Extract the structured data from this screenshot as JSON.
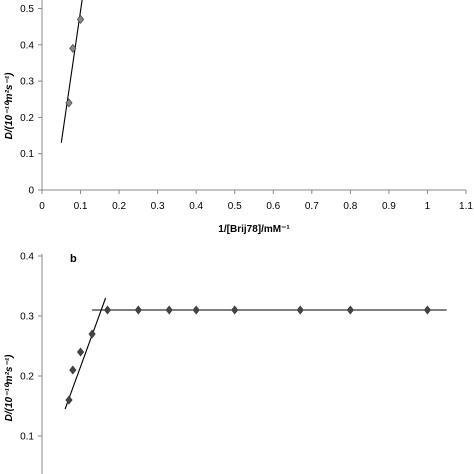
{
  "chart_data": [
    {
      "type": "scatter",
      "panel_label": "",
      "xlabel": "1/[Brij78]/mM⁻¹",
      "ylabel": "D/(10⁻¹⁰m²s⁻¹)",
      "xlim": [
        0,
        1.1
      ],
      "ylim": [
        0,
        0.5
      ],
      "x_ticks": [
        "0",
        "0.1",
        "0.2",
        "0.3",
        "0.4",
        "0.5",
        "0.6",
        "0.7",
        "0.8",
        "0.9",
        "1",
        "1.1"
      ],
      "y_ticks": [
        "0",
        "0.1",
        "0.2",
        "0.3",
        "0.4",
        "0.5"
      ],
      "marker": "diamond",
      "marker_color": "#888888",
      "series": [
        {
          "x": [
            0.07,
            0.08,
            0.1
          ],
          "y": [
            0.24,
            0.39,
            0.47
          ]
        }
      ],
      "fit_lines": [
        {
          "x": [
            0.05,
            0.105
          ],
          "y": [
            0.13,
            0.53
          ]
        }
      ],
      "grid": false
    },
    {
      "type": "scatter",
      "panel_label": "b",
      "xlabel": "",
      "ylabel": "D/(10⁻¹⁰m²s⁻¹)",
      "xlim": [
        0,
        1.1
      ],
      "ylim": [
        0.1,
        0.4
      ],
      "x_ticks": [],
      "y_ticks": [
        "0.1",
        "0.2",
        "0.3",
        "0.4"
      ],
      "marker": "diamond",
      "marker_color": "#444444",
      "series": [
        {
          "x": [
            0.07,
            0.08,
            0.1,
            0.13,
            0.17,
            0.25,
            0.33,
            0.4,
            0.5,
            0.67,
            0.8,
            1.0
          ],
          "y": [
            0.16,
            0.21,
            0.24,
            0.27,
            0.31,
            0.31,
            0.31,
            0.31,
            0.31,
            0.31,
            0.31,
            0.31
          ]
        }
      ],
      "fit_lines": [
        {
          "x": [
            0.06,
            0.165
          ],
          "y": [
            0.145,
            0.33
          ]
        },
        {
          "x": [
            0.13,
            1.05
          ],
          "y": [
            0.31,
            0.31
          ]
        }
      ],
      "grid": false
    }
  ]
}
